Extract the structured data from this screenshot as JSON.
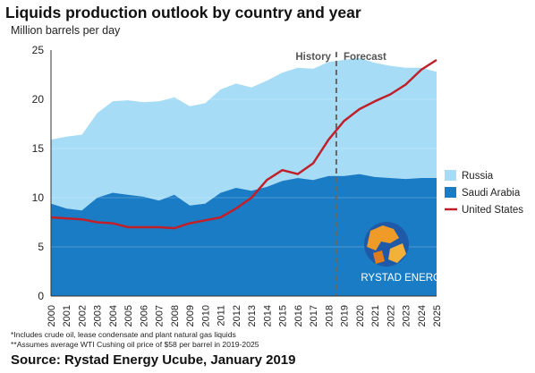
{
  "title": "Liquids production outlook by country and year",
  "footnotes": [
    "*Includes crude oil, lease condensate and plant natural gas liquids",
    "**Assumes average WTI Cushing oil price of $58 per barrel in 2019-2025"
  ],
  "source": "Source: Rystad Energy Ucube, January 2019",
  "logo_text": "RYSTAD ENERGY",
  "colors": {
    "russia": "#a6dcf6",
    "saudi": "#1a7cc4",
    "us": "#c0202a",
    "divider": "#666666",
    "axis": "#333333"
  },
  "chart_data": {
    "type": "area",
    "ylabel": "Million barrels per day",
    "ylim": [
      0,
      25
    ],
    "yticks": [
      0,
      5,
      10,
      15,
      20,
      25
    ],
    "x": [
      "2000",
      "2001",
      "2002",
      "2003",
      "2004",
      "2005",
      "2006",
      "2007",
      "2008",
      "2009",
      "2010",
      "2011",
      "2012",
      "2013",
      "2014",
      "2015",
      "2016",
      "2017",
      "2018",
      "2019",
      "2020",
      "2021",
      "2022",
      "2023",
      "2024",
      "2025"
    ],
    "history_label": "History",
    "forecast_label": "Forecast",
    "divider_between": [
      "2018",
      "2019"
    ],
    "legend_position": "right",
    "series": [
      {
        "name": "Russia",
        "kind": "stacked-area",
        "values": [
          6.5,
          7.3,
          7.7,
          8.6,
          9.3,
          9.6,
          9.6,
          10.1,
          9.9,
          10.1,
          10.2,
          10.5,
          10.6,
          10.5,
          10.8,
          11.0,
          11.2,
          11.3,
          11.6,
          11.8,
          11.8,
          11.6,
          11.4,
          11.3,
          11.2,
          10.8
        ]
      },
      {
        "name": "Saudi Arabia",
        "kind": "area",
        "values": [
          9.4,
          8.9,
          8.7,
          10.0,
          10.5,
          10.3,
          10.1,
          9.7,
          10.3,
          9.2,
          9.4,
          10.5,
          11.0,
          10.7,
          11.1,
          11.7,
          12.0,
          11.8,
          12.2,
          12.2,
          12.4,
          12.1,
          12.0,
          11.9,
          12.0,
          12.0
        ]
      },
      {
        "name": "United States",
        "kind": "line",
        "values": [
          8.0,
          7.9,
          7.8,
          7.5,
          7.4,
          7.0,
          7.0,
          7.0,
          6.9,
          7.4,
          7.7,
          8.0,
          8.9,
          10.0,
          11.8,
          12.8,
          12.4,
          13.5,
          15.9,
          17.8,
          19.0,
          19.8,
          20.5,
          21.5,
          23.0,
          24.0
        ]
      }
    ]
  }
}
